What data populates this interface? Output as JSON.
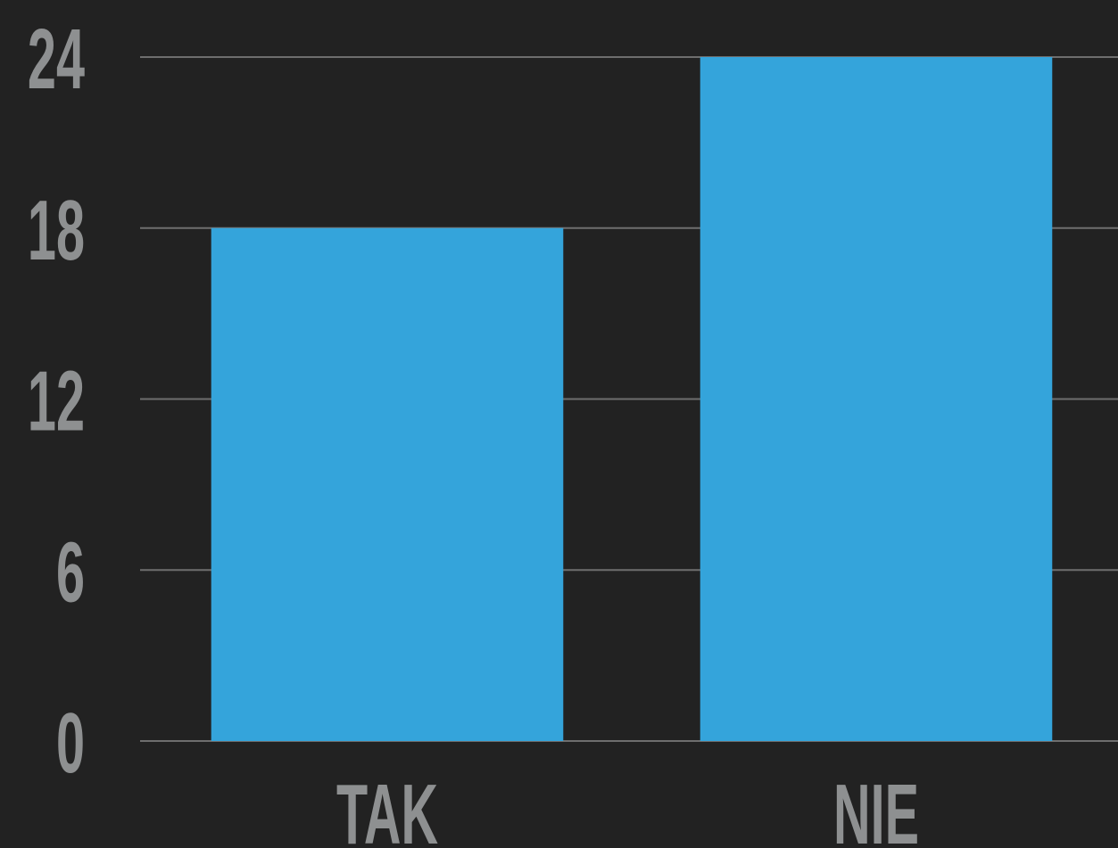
{
  "chart_data": {
    "type": "bar",
    "categories": [
      "TAK",
      "NIE"
    ],
    "values": [
      18,
      24
    ],
    "color": "#34a4db",
    "ylim": [
      0,
      24
    ],
    "yticks": [
      0,
      6,
      12,
      18,
      24
    ],
    "grid": true
  }
}
